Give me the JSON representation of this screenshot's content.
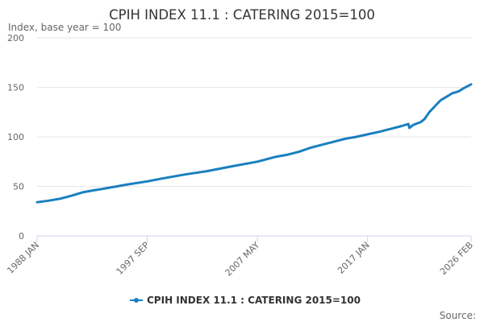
{
  "chart_data": {
    "type": "line",
    "title": "CPIH INDEX 11.1 : CATERING 2015=100",
    "subtitle": "Index, base year = 100",
    "xlabel": "",
    "ylabel": "",
    "ylim": [
      0,
      200
    ],
    "yticks": [
      "0",
      "50",
      "100",
      "150",
      "200"
    ],
    "xticks": [
      "1988 JAN",
      "1997 SEP",
      "2007 MAY",
      "2017 JAN",
      "2026 FEB"
    ],
    "grid": true,
    "legend_position": "bottom",
    "source_label": "Source:",
    "series": [
      {
        "name": "CPIH INDEX 11.1 : CATERING 2015=100",
        "color": "#1a7fbf",
        "points": [
          [
            "1988-01",
            34
          ],
          [
            "1989-01",
            35.5
          ],
          [
            "1990-01",
            37.5
          ],
          [
            "1991-01",
            40.5
          ],
          [
            "1992-01",
            44
          ],
          [
            "1993-01",
            46
          ],
          [
            "1994-01",
            48
          ],
          [
            "1995-01",
            50
          ],
          [
            "1996-01",
            52
          ],
          [
            "1997-09",
            55
          ],
          [
            "1999-01",
            58
          ],
          [
            "2001-01",
            62
          ],
          [
            "2003-01",
            65.5
          ],
          [
            "2005-01",
            70
          ],
          [
            "2007-05",
            75
          ],
          [
            "2009-01",
            80
          ],
          [
            "2010-01",
            82
          ],
          [
            "2011-01",
            85
          ],
          [
            "2012-01",
            89
          ],
          [
            "2013-01",
            92
          ],
          [
            "2014-01",
            95
          ],
          [
            "2015-01",
            98
          ],
          [
            "2016-01",
            100
          ],
          [
            "2017-01",
            102.5
          ],
          [
            "2018-01",
            105
          ],
          [
            "2019-01",
            108
          ],
          [
            "2020-01",
            111
          ],
          [
            "2020-08",
            113
          ],
          [
            "2020-09",
            109
          ],
          [
            "2021-01",
            112
          ],
          [
            "2021-09",
            115
          ],
          [
            "2022-01",
            118
          ],
          [
            "2022-06",
            125
          ],
          [
            "2023-01",
            132
          ],
          [
            "2023-06",
            137
          ],
          [
            "2024-01",
            141
          ],
          [
            "2024-06",
            144
          ],
          [
            "2025-01",
            146
          ],
          [
            "2025-06",
            149
          ],
          [
            "2026-02",
            153
          ]
        ]
      }
    ]
  }
}
